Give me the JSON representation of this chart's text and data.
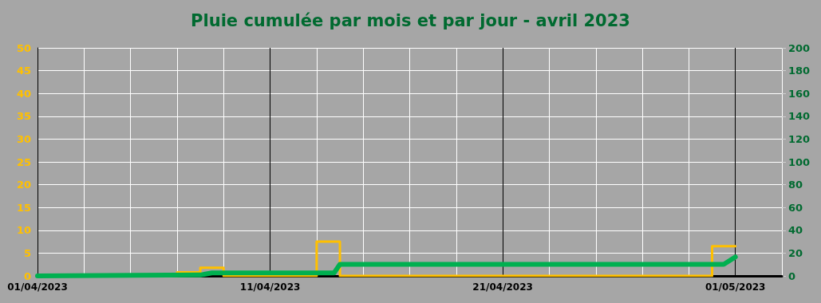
{
  "chart_data": {
    "type": "line",
    "title": "Pluie cumulée par mois et par jour - avril 2023",
    "series": [
      {
        "type": "step",
        "color": "#ffc000",
        "x": [
          "2023-04-06",
          "2023-04-07",
          "2023-04-08",
          "2023-04-09",
          "2023-04-10",
          "2023-04-11",
          "2023-04-12",
          "2023-04-13",
          "2023-04-14",
          "2023-04-15",
          "2023-04-16",
          "2023-04-17",
          "2023-04-18",
          "2023-04-19",
          "2023-04-20",
          "2023-04-21",
          "2023-04-22",
          "2023-04-23",
          "2023-04-24",
          "2023-04-25",
          "2023-04-26",
          "2023-04-27",
          "2023-04-28",
          "2023-04-29",
          "2023-04-30",
          "2023-05-01"
        ],
        "values": [
          0,
          0.8,
          1.8,
          0,
          0,
          0,
          0,
          7.5,
          0,
          0,
          0,
          0,
          0,
          0,
          0,
          0,
          0,
          0,
          0,
          0,
          0,
          0,
          0,
          0,
          6.5,
          6.5
        ]
      },
      {
        "axis": "y2",
        "color": "#00b050",
        "x": [
          "2023-04-01",
          "2023-04-08",
          "2023-04-08T12:00",
          "2023-04-13T18:00",
          "2023-04-14",
          "2023-04-30T12:00",
          "2023-05-01"
        ],
        "values": [
          0,
          0.8,
          2.6,
          2.6,
          10.1,
          10.1,
          16.6
        ]
      }
    ],
    "xlim": [
      "2023-04-01",
      "2023-05-03"
    ],
    "xticks": [
      {
        "value": "2023-04-01",
        "label": "01/04/2023"
      },
      {
        "value": "2023-04-03",
        "label": null
      },
      {
        "value": "2023-04-05",
        "label": null
      },
      {
        "value": "2023-04-07",
        "label": null
      },
      {
        "value": "2023-04-09",
        "label": null
      },
      {
        "value": "2023-04-11",
        "label": "11/04/2023"
      },
      {
        "value": "2023-04-13",
        "label": null
      },
      {
        "value": "2023-04-15",
        "label": null
      },
      {
        "value": "2023-04-17",
        "label": null
      },
      {
        "value": "2023-04-19",
        "label": null
      },
      {
        "value": "2023-04-21",
        "label": "21/04/2023"
      },
      {
        "value": "2023-04-23",
        "label": null
      },
      {
        "value": "2023-04-25",
        "label": null
      },
      {
        "value": "2023-04-27",
        "label": null
      },
      {
        "value": "2023-04-29",
        "label": null
      },
      {
        "value": "2023-05-01",
        "label": "01/05/2023"
      },
      {
        "value": "2023-05-03",
        "label": null
      }
    ],
    "ylim": [
      0,
      50
    ],
    "yticks": [
      0,
      5,
      10,
      15,
      20,
      25,
      30,
      35,
      40,
      45,
      50
    ],
    "y2lim": [
      0,
      200
    ],
    "y2ticks": [
      0,
      20,
      40,
      60,
      80,
      100,
      120,
      140,
      160,
      180,
      200
    ],
    "grid": true,
    "marker": "none",
    "line_style": "solid"
  }
}
